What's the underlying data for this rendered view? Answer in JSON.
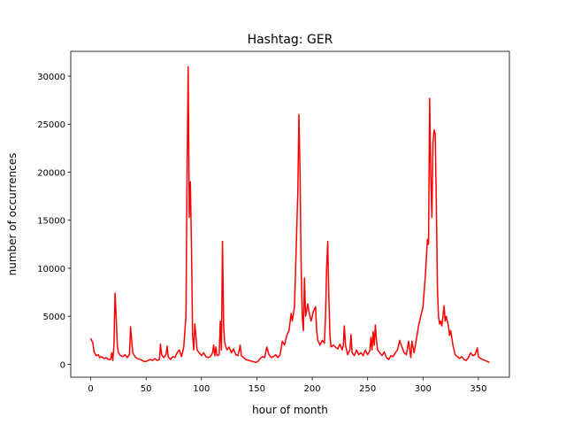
{
  "chart_data": {
    "type": "line",
    "title": "Hashtag: GER",
    "xlabel": "hour of month",
    "ylabel": "number of occurrences",
    "color": "#ff0000",
    "xlim": [
      -18,
      378
    ],
    "ylim": [
      -1340,
      32580
    ],
    "xticks": [
      0,
      50,
      100,
      150,
      200,
      250,
      300,
      350
    ],
    "yticks": [
      0,
      5000,
      10000,
      15000,
      20000,
      25000,
      30000
    ],
    "x": [
      0,
      2,
      3,
      5,
      7,
      8,
      10,
      12,
      14,
      16,
      18,
      19,
      20,
      21,
      22,
      23,
      24,
      25,
      27,
      29,
      31,
      33,
      35,
      36,
      37,
      38,
      40,
      42,
      45,
      48,
      50,
      52,
      54,
      56,
      58,
      60,
      62,
      63,
      64,
      66,
      68,
      69,
      70,
      72,
      74,
      76,
      78,
      80,
      82,
      84,
      86,
      87,
      88,
      89,
      90,
      91,
      92,
      93,
      94,
      95,
      96,
      98,
      100,
      102,
      104,
      106,
      108,
      110,
      111,
      112,
      113,
      114,
      116,
      117,
      118,
      119,
      120,
      121,
      123,
      125,
      127,
      129,
      131,
      133,
      135,
      136,
      138,
      140,
      143,
      146,
      149,
      151,
      153,
      155,
      157,
      159,
      161,
      163,
      165,
      167,
      169,
      171,
      173,
      175,
      177,
      179,
      181,
      182,
      184,
      186,
      187,
      188,
      189,
      190,
      191,
      192,
      193,
      194,
      196,
      197,
      199,
      201,
      203,
      204,
      205,
      207,
      209,
      211,
      212,
      213,
      214,
      215,
      216,
      217,
      219,
      221,
      223,
      225,
      227,
      228,
      229,
      230,
      232,
      234,
      235,
      236,
      238,
      240,
      242,
      244,
      246,
      248,
      250,
      252,
      253,
      254,
      255,
      256,
      257,
      258,
      259,
      261,
      263,
      265,
      267,
      269,
      271,
      273,
      275,
      277,
      279,
      281,
      283,
      285,
      287,
      289,
      290,
      292,
      294,
      296,
      298,
      300,
      302,
      304,
      305,
      306,
      307,
      308,
      309,
      310,
      311,
      312,
      313,
      314,
      315,
      316,
      317,
      318,
      319,
      320,
      321,
      323,
      324,
      325,
      327,
      329,
      331,
      333,
      335,
      337,
      339,
      341,
      343,
      345,
      347,
      349,
      350,
      352,
      354,
      356,
      358,
      360
    ],
    "values": [
      2700,
      2200,
      1300,
      900,
      1000,
      700,
      800,
      600,
      700,
      500,
      500,
      1200,
      400,
      2000,
      7400,
      5000,
      2000,
      1200,
      900,
      800,
      1000,
      700,
      1000,
      3900,
      2500,
      1200,
      800,
      600,
      500,
      300,
      300,
      400,
      500,
      400,
      600,
      400,
      500,
      2100,
      1000,
      700,
      1000,
      1900,
      800,
      500,
      800,
      700,
      1200,
      1500,
      800,
      1800,
      5000,
      20000,
      31000,
      15300,
      19000,
      12000,
      3000,
      1500,
      4200,
      3000,
      1500,
      1200,
      900,
      1200,
      800,
      700,
      800,
      1200,
      2000,
      900,
      1800,
      900,
      1000,
      4500,
      1500,
      12800,
      4000,
      2200,
      1500,
      1800,
      1200,
      1600,
      1000,
      900,
      2000,
      900,
      700,
      500,
      400,
      300,
      200,
      300,
      600,
      800,
      700,
      1800,
      1000,
      700,
      800,
      1000,
      700,
      1000,
      2400,
      2000,
      3000,
      3500,
      5300,
      4500,
      6000,
      14000,
      18000,
      26000,
      20000,
      10000,
      5000,
      3500,
      9000,
      5000,
      6300,
      5500,
      4500,
      5500,
      6000,
      3500,
      2500,
      2000,
      2500,
      2200,
      5000,
      10000,
      12800,
      7000,
      3000,
      1800,
      2000,
      1800,
      1600,
      2100,
      1500,
      1900,
      4000,
      2000,
      1000,
      1500,
      3100,
      1200,
      900,
      1500,
      1000,
      1200,
      900,
      1500,
      1000,
      1400,
      2800,
      1500,
      3400,
      2000,
      4100,
      2500,
      1500,
      1200,
      900,
      1300,
      700,
      500,
      900,
      800,
      1200,
      1500,
      2500,
      1800,
      1200,
      1000,
      2400,
      700,
      2400,
      1200,
      2600,
      4000,
      5000,
      6000,
      9000,
      13000,
      12500,
      27700,
      20000,
      15300,
      23000,
      24400,
      24000,
      17000,
      8000,
      5000,
      4200,
      4500,
      4000,
      5000,
      6100,
      4500,
      5000,
      4000,
      3000,
      3500,
      2000,
      1000,
      800,
      600,
      800,
      500,
      400,
      700,
      1200,
      900,
      1000,
      1700,
      800,
      600,
      500,
      400,
      300,
      200
    ]
  }
}
